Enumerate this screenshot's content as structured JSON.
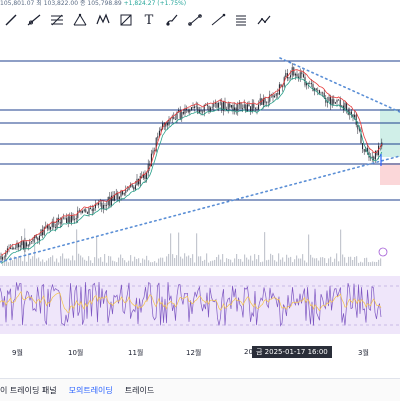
{
  "price_info": {
    "text": "105,801.07 최 103,822.00 종 105,798.89",
    "change": "+1,824.27 (+1.75%)"
  },
  "toolbar": {
    "tools": [
      {
        "name": "trend-line-icon"
      },
      {
        "name": "ray-icon"
      },
      {
        "name": "fib-retracement-icon"
      },
      {
        "name": "pitchfork-icon"
      },
      {
        "name": "pattern-icon"
      },
      {
        "name": "prediction-icon"
      },
      {
        "name": "brush-icon"
      },
      {
        "name": "text-icon"
      },
      {
        "name": "measure-icon"
      },
      {
        "name": "path-icon"
      },
      {
        "name": "list-icon"
      },
      {
        "name": "forecast-icon"
      }
    ],
    "text_tool_glyph": "T"
  },
  "chart": {
    "colors": {
      "hline": "#1e3f8c",
      "trend": "#5b8fd6",
      "candle": "#1c1f2a",
      "ma1": "#e63a3a",
      "ma2": "#2aa08a",
      "long_zone": "#d0efe8",
      "short_zone": "#fbd7d9",
      "rsi_bg": "#efe6fa",
      "rsi_line": "#7e57c2",
      "rsi_ma": "#f3c34b",
      "volume": "#c4c7cf"
    }
  },
  "xaxis": {
    "ticks": [
      "9월",
      "10월",
      "11월",
      "12월",
      "20",
      "3월"
    ],
    "crosshair_label": "금 2025-01-17  16:00"
  },
  "bottom": {
    "tabs": [
      {
        "label": "이 트레이딩 패널",
        "active": false
      },
      {
        "label": "모의트레이딩",
        "active": true
      },
      {
        "label": "트레이드",
        "active": false
      }
    ]
  }
}
